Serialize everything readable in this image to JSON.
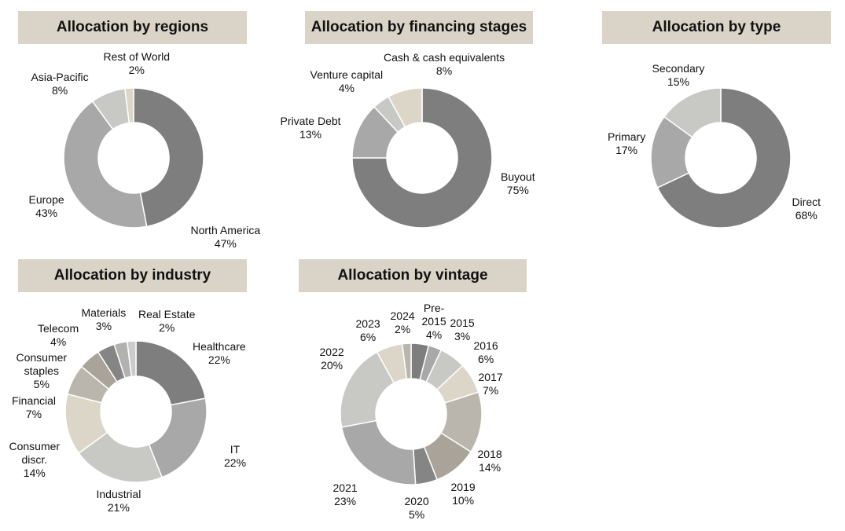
{
  "chart_data": [
    {
      "type": "pie",
      "title": "Allocation by regions",
      "categories": [
        "North America",
        "Europe",
        "Asia-Pacific",
        "Rest of World"
      ],
      "values": [
        47,
        43,
        8,
        2
      ],
      "labels": [
        "North America\n47%",
        "Europe\n43%",
        "Asia-Pacific\n8%",
        "Rest of World\n2%"
      ],
      "colors": [
        "#7d7e7d",
        "#a8a8a8",
        "#c8c9c5",
        "#dcd6c8"
      ]
    },
    {
      "type": "pie",
      "title": "Allocation by financing stages",
      "categories": [
        "Buyout",
        "Private Debt",
        "Venture capital",
        "Cash & cash equivalents"
      ],
      "values": [
        75,
        13,
        4,
        8
      ],
      "labels": [
        "Buyout\n75%",
        "Private Debt\n13%",
        "Venture capital\n4%",
        "Cash & cash equivalents\n8%"
      ],
      "colors": [
        "#7d7e7d",
        "#a8a8a8",
        "#c8c9c5",
        "#dcd6c8"
      ]
    },
    {
      "type": "pie",
      "title": "Allocation by type",
      "categories": [
        "Direct",
        "Primary",
        "Secondary"
      ],
      "values": [
        68,
        17,
        15
      ],
      "labels": [
        "Direct\n68%",
        "Primary\n17%",
        "Secondary\n15%"
      ],
      "colors": [
        "#7d7e7d",
        "#a8a8a8",
        "#c8c9c5"
      ]
    },
    {
      "type": "pie",
      "title": "Allocation by industry",
      "categories": [
        "Healthcare",
        "IT",
        "Industrial",
        "Consumer discr.",
        "Financial",
        "Consumer staples",
        "Telecom",
        "Materials",
        "Real Estate"
      ],
      "values": [
        22,
        22,
        21,
        14,
        7,
        5,
        4,
        3,
        2
      ],
      "labels": [
        "Healthcare\n22%",
        "IT\n22%",
        "Industrial\n21%",
        "Consumer\ndiscr.\n14%",
        "Financial\n7%",
        "Consumer\nstaples\n5%",
        "Telecom\n4%",
        "Materials\n3%",
        "Real Estate\n2%"
      ],
      "colors": [
        "#7d7e7d",
        "#a8a8a8",
        "#c8c9c5",
        "#dcd6c8",
        "#bab5ad",
        "#aaa39a",
        "#858585",
        "#b1b2b0",
        "#cccdcb"
      ]
    },
    {
      "type": "pie",
      "title": "Allocation by vintage",
      "categories": [
        "Pre-2015",
        "2015",
        "2016",
        "2017",
        "2018",
        "2019",
        "2020",
        "2021",
        "2022",
        "2023",
        "2024"
      ],
      "values": [
        4,
        3,
        6,
        7,
        14,
        10,
        5,
        23,
        20,
        6,
        2
      ],
      "labels": [
        "Pre-\n2015\n4%",
        "2015\n3%",
        "2016\n6%",
        "2017\n7%",
        "2018\n14%",
        "2019\n10%",
        "2020\n5%",
        "2021\n23%",
        "2022\n20%",
        "2023\n6%",
        "2024\n2%"
      ],
      "colors": [
        "#7d7e7d",
        "#a8a8a8",
        "#c8c9c5",
        "#dcd6c8",
        "#bab5ad",
        "#aaa39a",
        "#858585",
        "#a8a8a8",
        "#c8c9c5",
        "#dcd6c8",
        "#bab5ad"
      ]
    }
  ]
}
